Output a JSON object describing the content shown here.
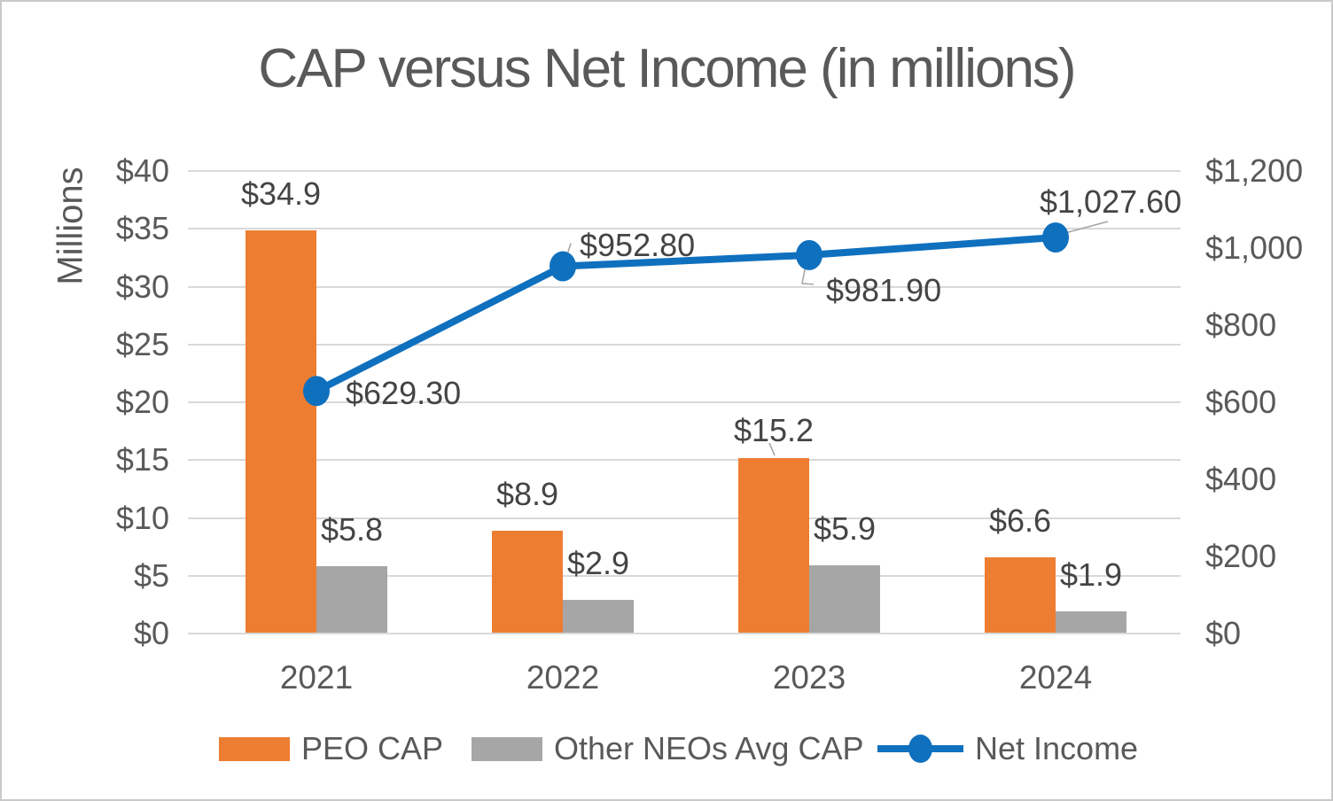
{
  "chart_data": {
    "type": "combo-bar-line",
    "title": "CAP versus Net Income (in millions)",
    "categories": [
      "2021",
      "2022",
      "2023",
      "2024"
    ],
    "series": [
      {
        "name": "PEO CAP",
        "type": "bar",
        "axis": "left",
        "color": "#ED7D31",
        "values": [
          34.9,
          8.9,
          15.2,
          6.6
        ],
        "labels": [
          "$34.9",
          "$8.9",
          "$15.2",
          "$6.6"
        ]
      },
      {
        "name": "Other NEOs Avg CAP",
        "type": "bar",
        "axis": "left",
        "color": "#A6A6A6",
        "values": [
          5.8,
          2.9,
          5.9,
          1.9
        ],
        "labels": [
          "$5.8",
          "$2.9",
          "$5.9",
          "$1.9"
        ]
      },
      {
        "name": "Net Income",
        "type": "line",
        "axis": "right",
        "color": "#0F70BE",
        "values": [
          629.3,
          952.8,
          981.9,
          1027.6
        ],
        "labels": [
          "$629.30",
          "$952.80",
          "$981.90",
          "$1,027.60"
        ]
      }
    ],
    "left_axis": {
      "title": "Millions",
      "min": 0,
      "max": 40,
      "step": 5,
      "tick_labels": [
        "$0",
        "$5",
        "$10",
        "$15",
        "$20",
        "$25",
        "$30",
        "$35",
        "$40"
      ]
    },
    "right_axis": {
      "min": 0,
      "max": 1200,
      "step": 200,
      "tick_labels": [
        "$0",
        "$200",
        "$400",
        "$600",
        "$800",
        "$1,000",
        "$1,200"
      ]
    },
    "legend_position": "bottom",
    "grid": true,
    "colors": {
      "grid": "#D9D9D9",
      "axis_text": "#595959",
      "label_text": "#444444",
      "leader": "#A6A6A6",
      "background": "#FFFFFF",
      "border": "#C9C9C9"
    }
  }
}
